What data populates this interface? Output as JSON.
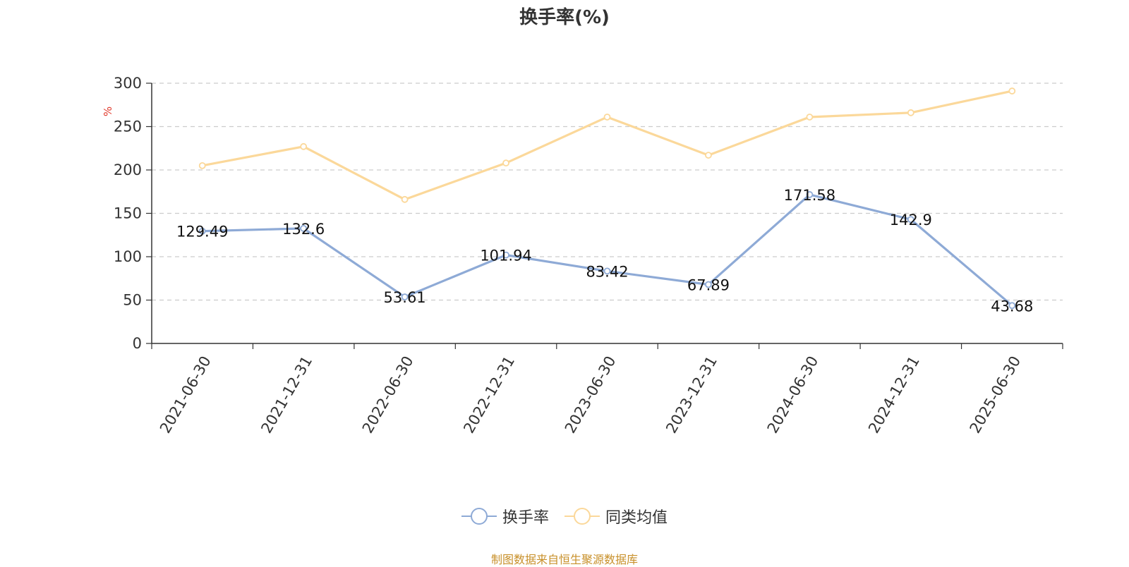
{
  "title": "换手率(%)",
  "source": "制图数据来自恒生聚源数据库",
  "colors": {
    "series1": "#8eaad6",
    "series2": "#fbd89a",
    "unit": "#e0392b",
    "grid": "#cccccc",
    "axis": "#333333"
  },
  "chart_data": {
    "type": "line",
    "ylabel": "%",
    "ylim": [
      0,
      300
    ],
    "yticks": [
      0,
      50,
      100,
      150,
      200,
      250,
      300
    ],
    "grid": true,
    "legend_position": "bottom-center",
    "categories": [
      "2021-06-30",
      "2021-12-31",
      "2022-06-30",
      "2022-12-31",
      "2023-06-30",
      "2023-12-31",
      "2024-06-30",
      "2024-12-31",
      "2025-06-30"
    ],
    "series": [
      {
        "name": "换手率",
        "color": "#8eaad6",
        "show_labels": true,
        "values": [
          129.49,
          132.6,
          53.61,
          101.94,
          83.42,
          67.89,
          171.58,
          142.9,
          43.68
        ]
      },
      {
        "name": "同类均值",
        "color": "#fbd89a",
        "show_labels": false,
        "values": [
          205,
          227,
          166,
          208,
          261,
          217,
          261,
          266,
          291
        ]
      }
    ]
  }
}
